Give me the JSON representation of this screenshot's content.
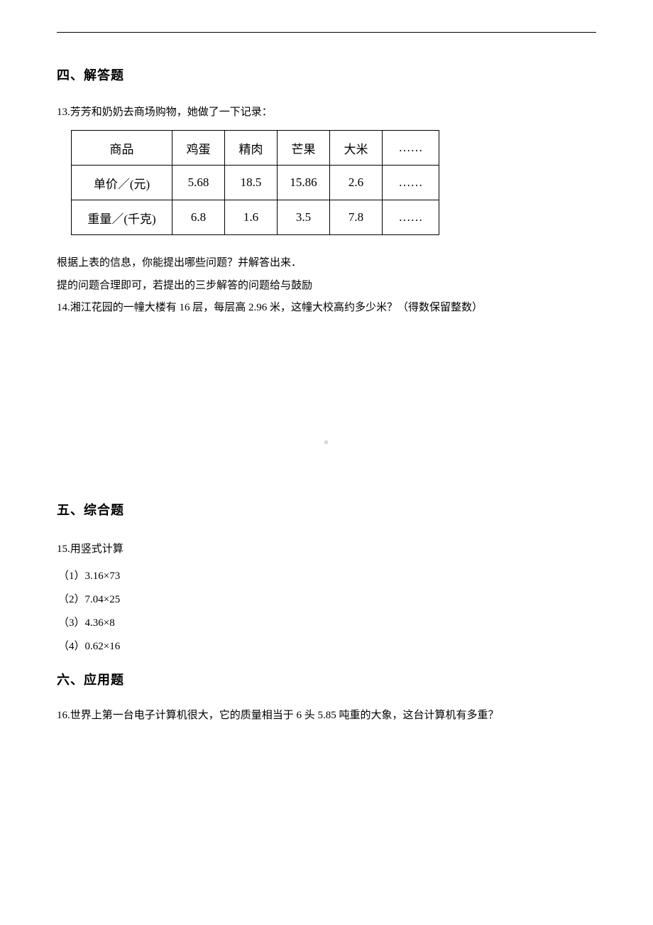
{
  "sections": {
    "four": {
      "heading": "四、解答题"
    },
    "five": {
      "heading": "五、综合题"
    },
    "six": {
      "heading": "六、应用题"
    }
  },
  "q13": {
    "intro": "13.芳芳和奶奶去商场购物，她做了一下记录：",
    "table": {
      "headers": [
        "商品",
        "鸡蛋",
        "精肉",
        "芒果",
        "大米",
        "……"
      ],
      "row_price_label": "单价／(元)",
      "row_weight_label": "重量／(千克)",
      "prices": [
        "5.68",
        "18.5",
        "15.86",
        "2.6",
        "……"
      ],
      "weights": [
        "6.8",
        "1.6",
        "3.5",
        "7.8",
        "……"
      ],
      "border_color": "#000000",
      "cell_fontsize": 17
    },
    "after1": "根据上表的信息，你能提出哪些问题？并解答出来．",
    "after2": "提的问题合理即可，若提出的三步解答的问题给与鼓励"
  },
  "q14": {
    "text": "14.湘江花园的一幢大楼有 16 层，每层高 2.96 米，这幢大校高约多少米？（得数保留整数）"
  },
  "q15": {
    "intro": "15.用竖式计算",
    "items": {
      "i1": "（1）3.16×73",
      "i2": "（2）7.04×25",
      "i3": "（3）4.36×8",
      "i4": "（4）0.62×16"
    }
  },
  "q16": {
    "text": "16.世界上第一台电子计算机很大，它的质量相当于 6 头 5.85 吨重的大象，这台计算机有多重？"
  },
  "style": {
    "page_bg": "#ffffff",
    "text_color": "#000000",
    "heading_fontsize": 18,
    "body_fontsize": 15
  }
}
